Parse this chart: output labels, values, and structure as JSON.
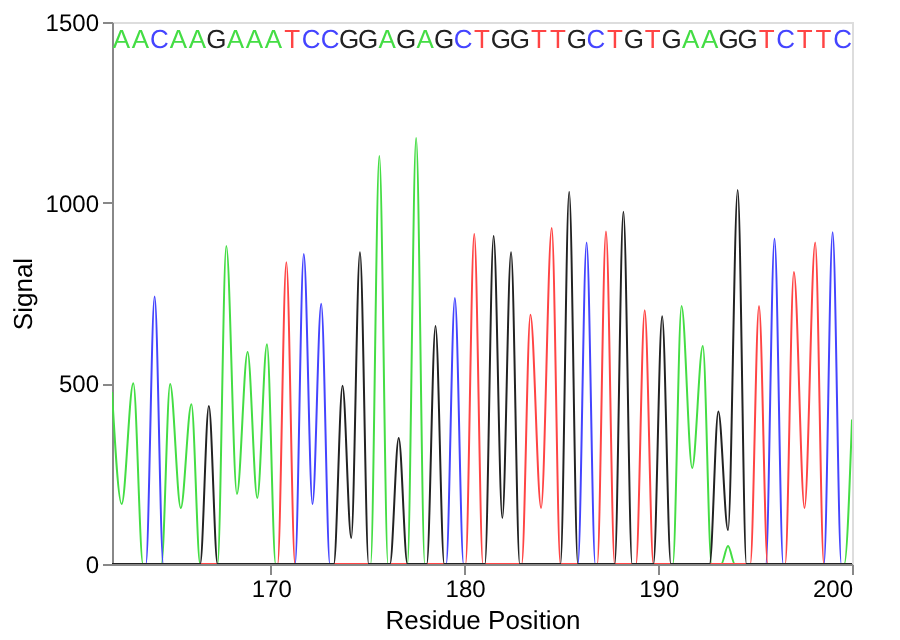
{
  "chart_data": {
    "type": "line",
    "xlabel": "Residue Position",
    "ylabel": "Signal",
    "xlim": [
      161.8,
      200
    ],
    "xticks": [
      170,
      180,
      190,
      200
    ],
    "ylim": [
      0,
      1500
    ],
    "yticks": [
      0,
      500,
      {
        "value": 1000,
        "label": "1000"
      },
      {
        "value": 1500,
        "label": "1500"
      }
    ],
    "grid": false,
    "legend": false,
    "marker": "none",
    "line_style": "solid",
    "series": [
      {
        "color": "#44dd44",
        "x": [
          161.8,
          162.3,
          162.9,
          163.4,
          164.35,
          164.8,
          165.35,
          165.9,
          166.35,
          167.25,
          167.7,
          168.25,
          168.8,
          169.3,
          169.8,
          170.25,
          175.15,
          175.6,
          176.05,
          177.05,
          177.5,
          177.95,
          190.75,
          191.2,
          191.75,
          192.3,
          192.75,
          193.25,
          193.6,
          193.95,
          199.6,
          200
        ],
        "values": [
          476,
          166,
          500,
          0,
          0,
          498,
          155,
          442,
          0,
          0,
          880,
          194,
          587,
          183,
          608,
          0,
          0,
          1129,
          0,
          0,
          1179,
          0,
          0,
          714,
          266,
          603,
          0,
          0,
          50,
          0,
          0,
          400
        ]
      },
      {
        "color": "#4444ff",
        "x": [
          161.8,
          163.55,
          164.0,
          164.45,
          171.25,
          171.7,
          172.15,
          172.6,
          173.05,
          179.05,
          179.5,
          179.95,
          185.85,
          186.3,
          186.75,
          195.55,
          196.0,
          196.45,
          198.55,
          199.0,
          199.45,
          200
        ],
        "values": [
          0,
          0,
          740,
          0,
          0,
          858,
          166,
          720,
          0,
          0,
          736,
          0,
          0,
          890,
          0,
          0,
          900,
          0,
          0,
          918,
          0,
          0
        ]
      },
      {
        "color": "#ff4444",
        "x": [
          161.8,
          170.35,
          170.8,
          171.25,
          180.05,
          180.5,
          180.95,
          182.95,
          183.4,
          183.95,
          184.5,
          184.95,
          186.85,
          187.3,
          187.75,
          188.85,
          189.3,
          189.75,
          194.75,
          195.2,
          195.65,
          196.55,
          197.0,
          197.55,
          198.1,
          198.55,
          200
        ],
        "values": [
          0,
          0,
          835,
          0,
          0,
          913,
          0,
          0,
          690,
          155,
          930,
          0,
          0,
          920,
          0,
          0,
          702,
          0,
          0,
          714,
          0,
          0,
          808,
          155,
          890,
          0,
          0
        ]
      },
      {
        "color": "#222222",
        "x": [
          161.8,
          166.35,
          166.8,
          167.25,
          173.25,
          173.7,
          174.15,
          174.6,
          175.05,
          176.15,
          176.6,
          177.05,
          178.05,
          178.5,
          178.95,
          181.05,
          181.5,
          181.95,
          182.4,
          182.85,
          184.95,
          185.4,
          185.85,
          187.75,
          188.2,
          188.65,
          189.75,
          190.2,
          190.65,
          192.65,
          193.1,
          193.6,
          194.1,
          194.55,
          200
        ],
        "values": [
          0,
          0,
          437,
          0,
          0,
          493,
          72,
          863,
          0,
          0,
          349,
          0,
          0,
          659,
          0,
          0,
          908,
          127,
          863,
          0,
          0,
          1030,
          0,
          0,
          975,
          0,
          0,
          686,
          0,
          0,
          422,
          94,
          1035,
          0,
          0
        ]
      }
    ],
    "annotations": [
      "A",
      "A",
      "C",
      "A",
      "A",
      "G",
      "A",
      "A",
      "A",
      "T",
      "C",
      "C",
      "G",
      "G",
      "A",
      "G",
      "A",
      "G",
      "C",
      "T",
      "G",
      "G",
      "T",
      "T",
      "G",
      "C",
      "T",
      "G",
      "T",
      "G",
      "A",
      "A",
      "G",
      "G",
      "T",
      "C",
      "T",
      "T",
      "C"
    ]
  }
}
